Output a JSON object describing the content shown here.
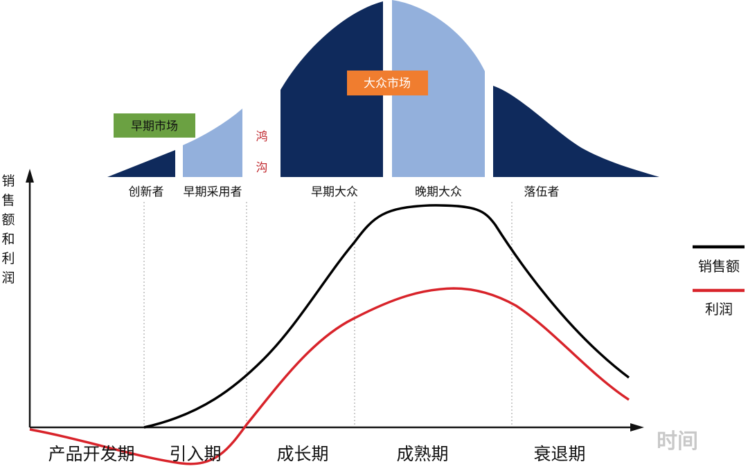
{
  "colors": {
    "dark_navy": "#0f2a5c",
    "light_blue": "#93b0dc",
    "early_market_green": "#6ba142",
    "mass_market_orange": "#f07d2f",
    "sales_line": "#000000",
    "profit_line": "#d8232a",
    "axis": "#111111",
    "chasm_text": "#c0272d"
  },
  "adoption": {
    "early_market_label": "早期市场",
    "mass_market_label": "大众市场",
    "chasm_chars": [
      "鸿",
      "沟"
    ],
    "segments": [
      "创新者",
      "早期采用者",
      "早期大众",
      "晚期大众",
      "落伍者"
    ]
  },
  "y_axis_chars": [
    "销",
    "售",
    "额",
    "和",
    "利",
    "润"
  ],
  "x_axis_label": "时间",
  "phases": [
    "产品开发期",
    "引入期",
    "成长期",
    "成熟期",
    "衰退期"
  ],
  "legend": {
    "sales": "销售额",
    "profit": "利润"
  }
}
